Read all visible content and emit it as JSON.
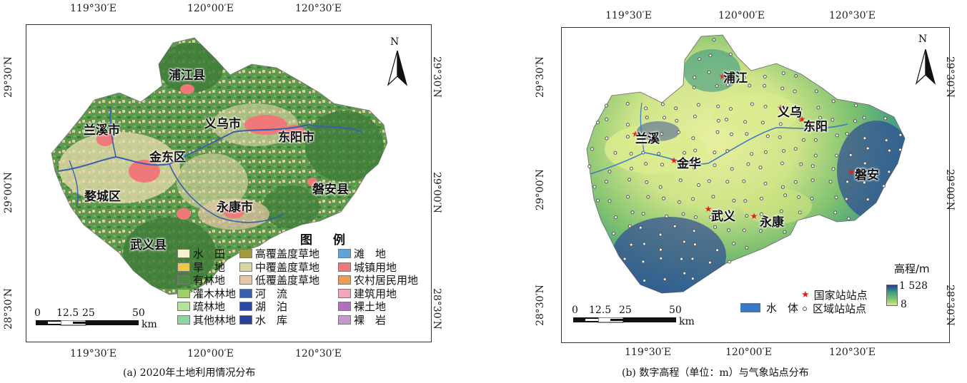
{
  "panel_a": {
    "caption": "(a) 2020年土地利用情况分布",
    "lon_ticks": [
      "119°30′E",
      "120°00′E",
      "120°30′E"
    ],
    "lat_ticks": [
      "29°30′N",
      "29°00′N",
      "28°30′N"
    ],
    "north_label": "N",
    "place_labels": [
      "浦江县",
      "义乌市",
      "兰溪市",
      "东阳市",
      "金东区",
      "婺城区",
      "磐安县",
      "永康市",
      "武义县"
    ],
    "scale": {
      "ticks": [
        "0",
        "12.5",
        "25",
        "50"
      ],
      "unit": "km"
    },
    "legend": {
      "title": "图　例",
      "items": [
        {
          "label": "水　田",
          "color": "#f8f1cf"
        },
        {
          "label": "旱　地",
          "color": "#ecc84a"
        },
        {
          "label": "有林地",
          "color": "#4b8a45"
        },
        {
          "label": "灌木林地",
          "color": "#9ed06a"
        },
        {
          "label": "疏林地",
          "color": "#b7dfa0"
        },
        {
          "label": "其他林地",
          "color": "#8ed3a0"
        },
        {
          "label": "高覆盖度草地",
          "color": "#a59a3c"
        },
        {
          "label": "中覆盖度草地",
          "color": "#d7d5a0"
        },
        {
          "label": "低覆盖度草地",
          "color": "#e6c8a8"
        },
        {
          "label": "河　流",
          "color": "#3a5fb0"
        },
        {
          "label": "湖　泊",
          "color": "#2e48a6"
        },
        {
          "label": "水　库",
          "color": "#2a3f9a"
        },
        {
          "label": "滩　地",
          "color": "#5ea4d8"
        },
        {
          "label": "城镇用地",
          "color": "#f07878"
        },
        {
          "label": "农村居民用地",
          "color": "#f09a50"
        },
        {
          "label": "建筑用地",
          "color": "#f0a8b8"
        },
        {
          "label": "裸土地",
          "color": "#b070c0"
        },
        {
          "label": "裸　岩",
          "color": "#c498d0"
        }
      ]
    }
  },
  "panel_b": {
    "caption": "(b) 数字高程（单位：m）与气象站点分布",
    "lon_ticks": [
      "119°30′E",
      "120°00′E",
      "120°30′E"
    ],
    "lat_ticks": [
      "29°30′N",
      "29°00′N",
      "28°30′N"
    ],
    "north_label": "N",
    "place_labels": [
      "浦江",
      "义乌",
      "兰溪",
      "东阳",
      "金华",
      "磐安",
      "武义",
      "永康"
    ],
    "scale": {
      "ticks": [
        "0",
        "12.5",
        "25",
        "50"
      ],
      "unit": "km"
    },
    "legend": {
      "water": "水　体",
      "national_station": "国家站站点",
      "regional_station": "区域站站点",
      "elevation_title": "高程/m",
      "elevation_max": "1 528",
      "elevation_min": "8"
    },
    "colors": {
      "water": "#3c78c8",
      "national": "#e02020",
      "low": "#d6ea80",
      "high": "#2a3a8a"
    }
  }
}
